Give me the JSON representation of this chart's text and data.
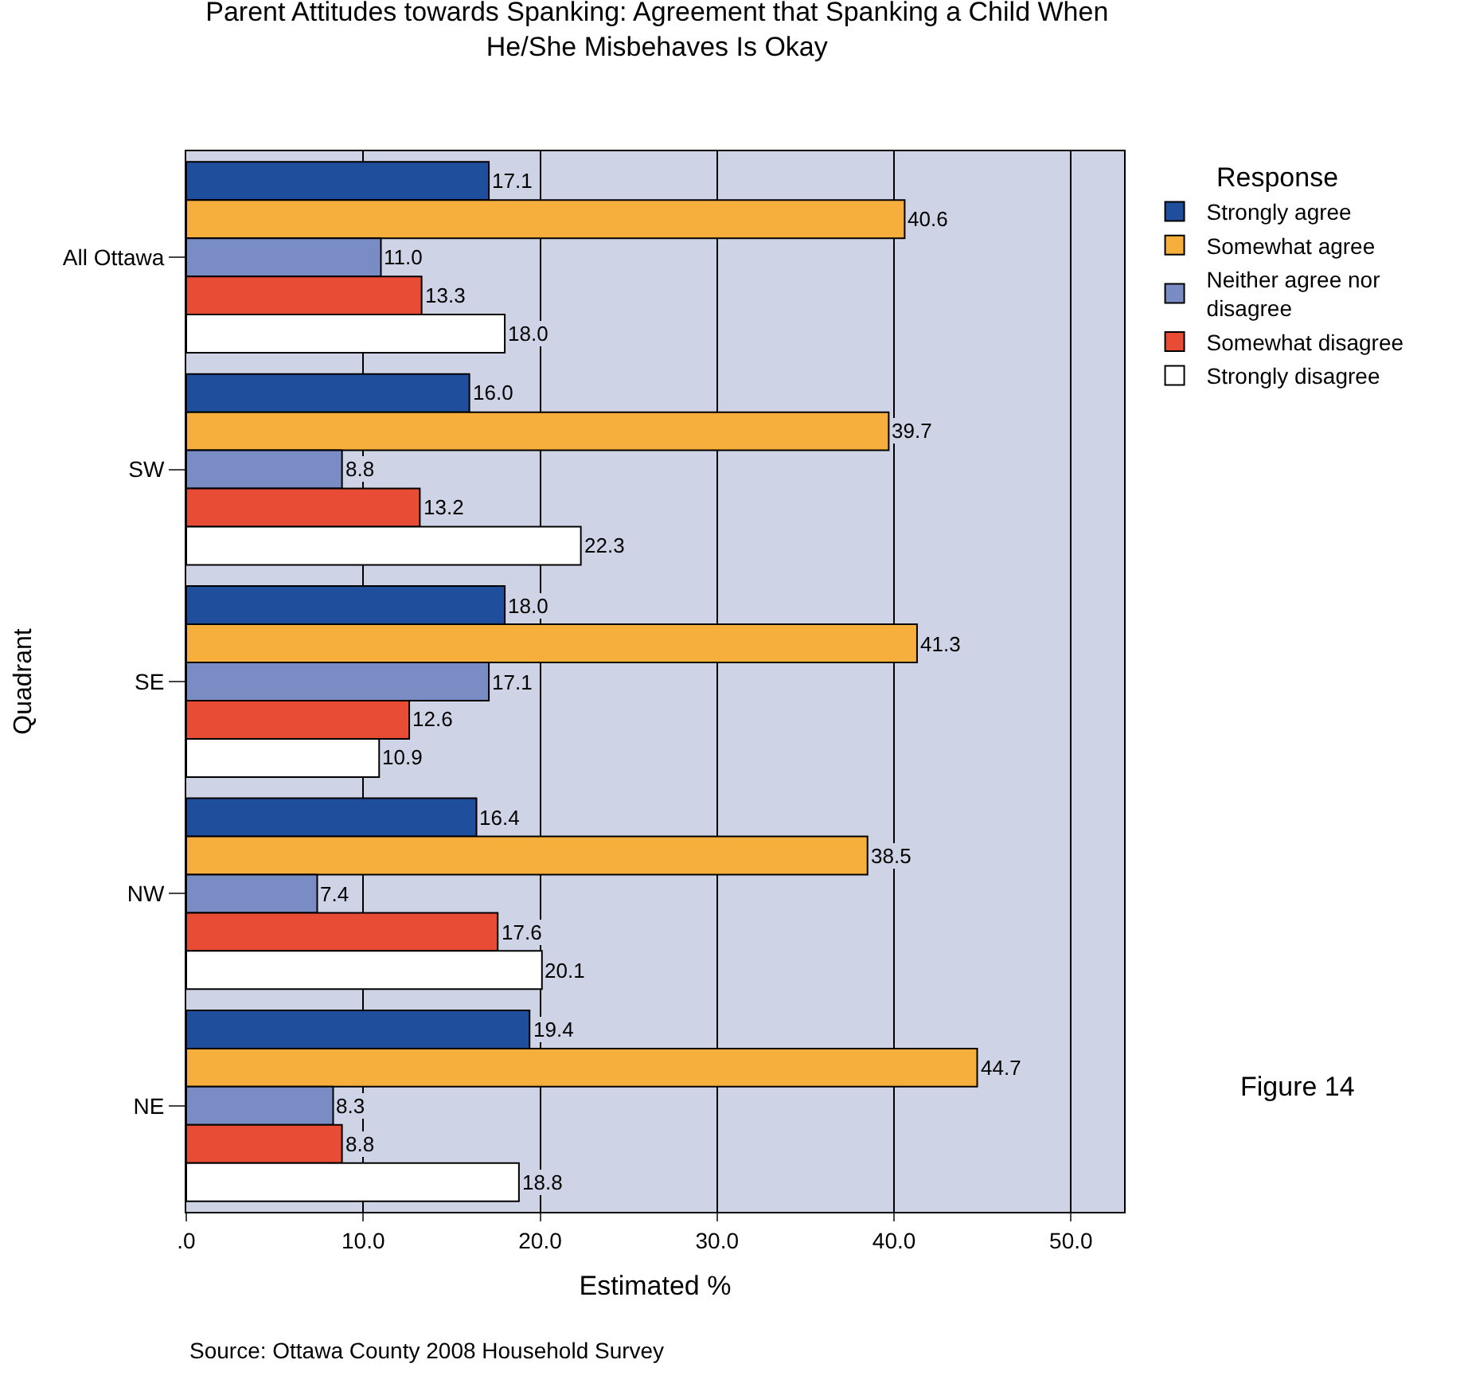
{
  "chart_data": {
    "type": "bar",
    "orientation": "horizontal",
    "title": "Parent Attitudes towards Spanking: Agreement that Spanking a Child When\nHe/She Misbehaves Is Okay",
    "xlabel": "Estimated %",
    "ylabel": "Quadrant",
    "legend_title": "Response",
    "categories": [
      "All Ottawa",
      "SW",
      "SE",
      "NW",
      "NE"
    ],
    "series": [
      {
        "name": "Strongly agree",
        "color": "#1f4e9c",
        "values": [
          17.1,
          16.0,
          18.0,
          16.4,
          19.4
        ],
        "value_labels": [
          "17.1",
          "16.0",
          "18.0",
          "16.4",
          "19.4"
        ]
      },
      {
        "name": "Somewhat agree",
        "color": "#f6ae3c",
        "values": [
          40.6,
          39.7,
          41.3,
          38.5,
          44.7
        ],
        "value_labels": [
          "40.6",
          "39.7",
          "41.3",
          "38.5",
          "44.7"
        ]
      },
      {
        "name": "Neither agree nor\ndisagree",
        "color": "#7a8cc4",
        "values": [
          11.0,
          8.8,
          17.1,
          7.4,
          8.3
        ],
        "value_labels": [
          "11.0",
          "8.8",
          "17.1",
          "7.4",
          "8.3"
        ]
      },
      {
        "name": "Somewhat disagree",
        "color": "#e84c34",
        "values": [
          13.3,
          13.2,
          12.6,
          17.6,
          8.8
        ],
        "value_labels": [
          "13.3",
          "13.2",
          "12.6",
          "17.6",
          "8.8"
        ]
      },
      {
        "name": "Strongly disagree",
        "color": "#ffffff",
        "values": [
          18.0,
          22.3,
          10.9,
          20.1,
          18.8
        ],
        "value_labels": [
          "18.0",
          "22.3",
          "10.9",
          "20.1",
          "18.8"
        ]
      }
    ],
    "xlim": [
      0,
      53
    ],
    "xticks": [
      {
        "value": 0,
        "label": ".0"
      },
      {
        "value": 10,
        "label": "10.0"
      },
      {
        "value": 20,
        "label": "20.0"
      },
      {
        "value": 30,
        "label": "30.0"
      },
      {
        "value": 40,
        "label": "40.0"
      },
      {
        "value": 50,
        "label": "50.0"
      }
    ],
    "grid": "x",
    "legend": "top right",
    "annotations": [
      "Source: Ottawa County 2008 Household Survey",
      "Figure 14"
    ]
  }
}
